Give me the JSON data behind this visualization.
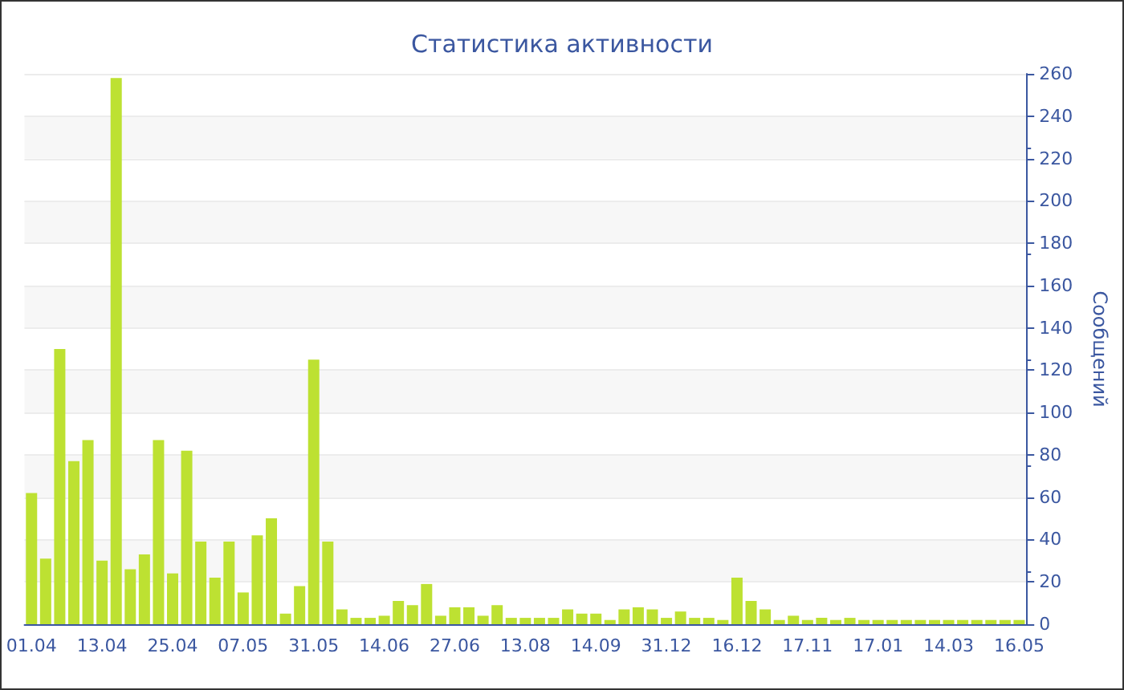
{
  "chart_data": {
    "type": "bar",
    "title": "Статистика активности",
    "ylabel": "Сообщений",
    "categories": [
      "01.04",
      null,
      null,
      null,
      null,
      "13.04",
      null,
      null,
      null,
      null,
      "25.04",
      null,
      null,
      null,
      null,
      "07.05",
      null,
      null,
      null,
      null,
      "31.05",
      null,
      null,
      null,
      null,
      "14.06",
      null,
      null,
      null,
      null,
      "27.06",
      null,
      null,
      null,
      null,
      "13.08",
      null,
      null,
      null,
      null,
      "14.09",
      null,
      null,
      null,
      null,
      "31.12",
      null,
      null,
      null,
      null,
      "16.12",
      null,
      null,
      null,
      null,
      "17.11",
      null,
      null,
      null,
      null,
      "17.01",
      null,
      null,
      null,
      null,
      "14.03",
      null,
      null,
      null,
      null,
      "16.05"
    ],
    "values": [
      62,
      31,
      130,
      77,
      87,
      30,
      258,
      26,
      33,
      87,
      24,
      82,
      39,
      22,
      39,
      15,
      42,
      50,
      5,
      18,
      125,
      39,
      7,
      3,
      3,
      4,
      11,
      9,
      19,
      4,
      8,
      8,
      4,
      9,
      3,
      3,
      3,
      3,
      7,
      5,
      5,
      2,
      7,
      8,
      7,
      3,
      6,
      3,
      3,
      2,
      22,
      11,
      7,
      2,
      4,
      2,
      3,
      2,
      3,
      2,
      2,
      2,
      2,
      2,
      2,
      2,
      2,
      2,
      2,
      2,
      2
    ],
    "color": "#bde132",
    "ylim": [
      0,
      260
    ],
    "yticks": [
      0,
      20,
      40,
      60,
      80,
      100,
      120,
      140,
      160,
      180,
      200,
      220,
      240,
      260
    ],
    "grid": "y"
  }
}
